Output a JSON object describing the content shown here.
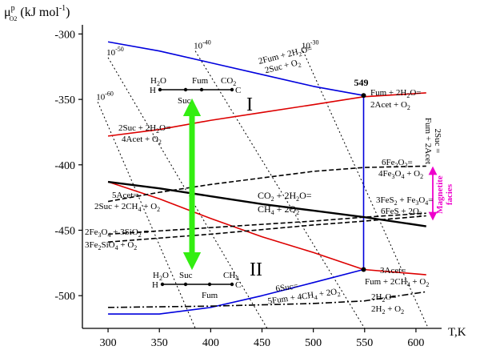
{
  "chart_data": {
    "type": "line",
    "title": "",
    "ylabel_main": "μ",
    "ylabel_sup": "p",
    "ylabel_sub": "O2",
    "ylabel_unit": "(kJ mol",
    "ylabel_unit_exp": "-1",
    "ylabel_unit_close": ")",
    "xlabel": "T,K",
    "xlim": [
      275,
      625
    ],
    "ylim": [
      -525,
      -293
    ],
    "xticks": [
      300,
      350,
      400,
      450,
      500,
      550,
      600
    ],
    "yticks": [
      -300,
      -350,
      -400,
      -450,
      -500
    ],
    "series": [
      {
        "color": "#0000dd",
        "style": "solid",
        "x": [
          300,
          350,
          400,
          450,
          500,
          549
        ],
        "y": [
          -306,
          -313,
          -322,
          -331,
          -340,
          -347
        ]
      },
      {
        "color": "#0000dd",
        "style": "solid",
        "x": [
          300,
          350,
          400,
          450,
          500,
          549
        ],
        "y": [
          -514,
          -514,
          -509,
          -500,
          -490,
          -480
        ]
      },
      {
        "color": "#dd0000",
        "style": "solid",
        "x": [
          300,
          350,
          400,
          450,
          500,
          549,
          610
        ],
        "y": [
          -378,
          -373,
          -366,
          -360,
          -354,
          -348,
          -345
        ]
      },
      {
        "color": "#dd0000",
        "style": "solid",
        "x": [
          300,
          350,
          400,
          450,
          500,
          549,
          610
        ],
        "y": [
          -413,
          -426,
          -441,
          -455,
          -467,
          -480,
          -484
        ]
      },
      {
        "color": "#0000dd",
        "style": "solid",
        "x": [
          549,
          549
        ],
        "y": [
          -347,
          -480
        ]
      },
      {
        "color": "#000000",
        "style": "solid",
        "x": [
          300,
          350,
          400,
          450,
          500,
          550,
          610
        ],
        "y": [
          -413,
          -418,
          -424,
          -430,
          -435,
          -440,
          -447
        ]
      },
      {
        "color": "#000000",
        "style": "dashed",
        "x": [
          300,
          350,
          400,
          450,
          500,
          550,
          610
        ],
        "y": [
          -428,
          -421,
          -415,
          -410,
          -405,
          -402,
          -401
        ]
      },
      {
        "color": "#000000",
        "style": "dashed",
        "x": [
          300,
          400,
          500,
          550,
          610
        ],
        "y": [
          -453,
          -448,
          -443,
          -440,
          -437
        ]
      },
      {
        "color": "#000000",
        "style": "dashed",
        "x": [
          300,
          400,
          500,
          550,
          610
        ],
        "y": [
          -459,
          -453,
          -446,
          -443,
          -439
        ]
      },
      {
        "color": "#000000",
        "style": "dashdot",
        "x": [
          300,
          400,
          500,
          550,
          610
        ],
        "y": [
          -509,
          -508,
          -506,
          -504,
          -497
        ]
      }
    ],
    "isobars": [
      {
        "label": "10",
        "exp": "-60",
        "x": [
          290,
          385
        ],
        "y": [
          -352,
          -525
        ]
      },
      {
        "label": "10",
        "exp": "-50",
        "x": [
          300,
          455
        ],
        "y": [
          -318,
          -525
        ]
      },
      {
        "label": "10",
        "exp": "-40",
        "x": [
          385,
          550
        ],
        "y": [
          -313,
          -525
        ]
      },
      {
        "label": "10",
        "exp": "-30",
        "x": [
          490,
          612
        ],
        "y": [
          -313,
          -525
        ]
      }
    ],
    "points": [
      {
        "x": 549,
        "y": -347,
        "label": "549"
      },
      {
        "x": 549,
        "y": -480,
        "label": ""
      }
    ],
    "regions": [
      "I",
      "II"
    ],
    "annotations": {
      "fum_reaction": [
        "2Fum + 2H",
        "2",
        "O=",
        "2Suc + O",
        "2"
      ],
      "suc_reaction": [
        "2Suc + 2H",
        "2",
        "O=",
        "4Acet + O",
        "2"
      ],
      "fum_acet": [
        "Fum + 2H",
        "2",
        "O=",
        "2Acet + O",
        "2"
      ],
      "vertical": [
        "2Suc =",
        "Fum + 2Acet"
      ],
      "co2": [
        "CO",
        "2",
        " + 2H",
        "2",
        "O=",
        "CH",
        "4",
        " + 2O",
        "2"
      ],
      "acet5": [
        "5Acet=",
        "2Suc + 2CH",
        "4",
        " + O",
        "2"
      ],
      "fe_ox": [
        "6Fe",
        "2",
        "O",
        "3",
        "=",
        "4Fe",
        "3",
        "O",
        "4",
        " + O",
        "2"
      ],
      "fe_s": [
        "3FeS",
        "2",
        " + Fe",
        "3",
        "O",
        "4",
        "=",
        "6FeS + 2O",
        "2"
      ],
      "fayalite": [
        "2Fe",
        "3",
        "O",
        "4",
        " + 3SiO",
        "2",
        " =",
        "3Fe",
        "2",
        "SiO",
        "4",
        " + O",
        "2"
      ],
      "acet3": [
        "3Acet=",
        "Fum + 2CH",
        "4",
        " + O",
        "2"
      ],
      "suc6": [
        "6Suc=",
        "5Fum + 4CH",
        "4",
        " + 2O",
        "2"
      ],
      "water": [
        "2H",
        "2",
        "O=",
        "2H",
        "2",
        " + O",
        "2"
      ],
      "magnetite": [
        "Magnetite",
        "facies"
      ]
    },
    "scale_top": {
      "h2o": [
        "H",
        "2",
        "O"
      ],
      "h": "H",
      "fum": "Fum",
      "suc": "Suc",
      "co2": [
        "CO",
        "2"
      ],
      "c": "C"
    },
    "scale_bottom": {
      "h2o": [
        "H",
        "2",
        "O"
      ],
      "h": "H",
      "suc": "Suc",
      "fum": "Fum",
      "ch4": [
        "CH",
        "4"
      ],
      "c": "C"
    },
    "colors": {
      "blue": "#0000dd",
      "red": "#dd0000",
      "green": "#33ee11",
      "magenta": "#ee00cc"
    },
    "grid": false,
    "legend": "none"
  }
}
